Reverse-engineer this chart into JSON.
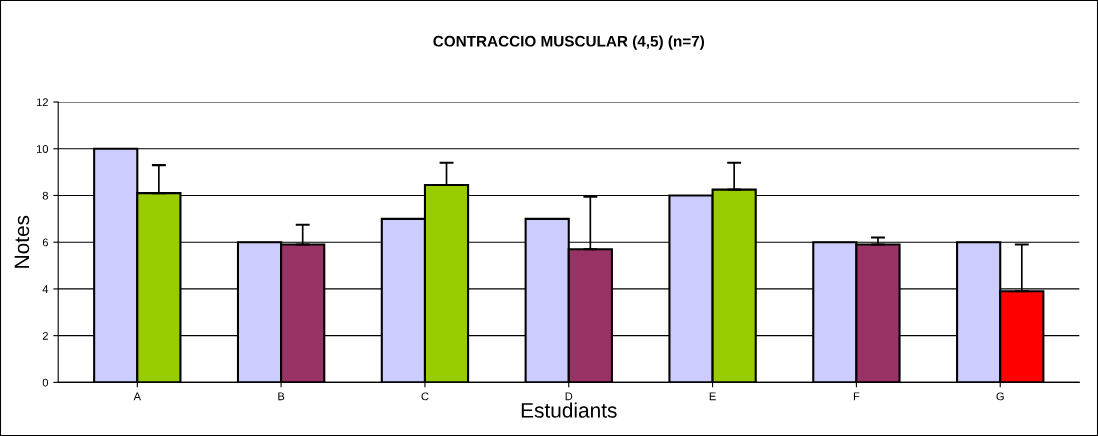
{
  "chart_data": {
    "type": "bar",
    "title": "CONTRACCIO MUSCULAR (4,5) (n=7)",
    "xlabel": "Estudiants",
    "ylabel": "Notes",
    "categories": [
      "A",
      "B",
      "C",
      "D",
      "E",
      "F",
      "G"
    ],
    "series": [
      {
        "color": "#ccccff",
        "values": [
          10,
          6,
          7,
          7,
          8,
          6,
          6
        ]
      },
      {
        "colors": [
          "#99cc00",
          "#993366",
          "#99cc00",
          "#993366",
          "#99cc00",
          "#993366",
          "#ff0000"
        ],
        "values": [
          8.1,
          5.9,
          8.45,
          5.7,
          8.25,
          5.9,
          3.9
        ],
        "errors": [
          [
            8.1,
            9.3
          ],
          [
            5.9,
            6.75
          ],
          [
            8.45,
            9.4
          ],
          [
            5.7,
            7.95
          ],
          [
            8.25,
            9.4
          ],
          [
            5.9,
            6.2
          ],
          [
            3.9,
            5.9
          ]
        ]
      }
    ],
    "ylim": [
      0,
      12
    ],
    "yticks": [
      0,
      2,
      4,
      6,
      8,
      10,
      12
    ],
    "grid": "y",
    "legend": false
  }
}
